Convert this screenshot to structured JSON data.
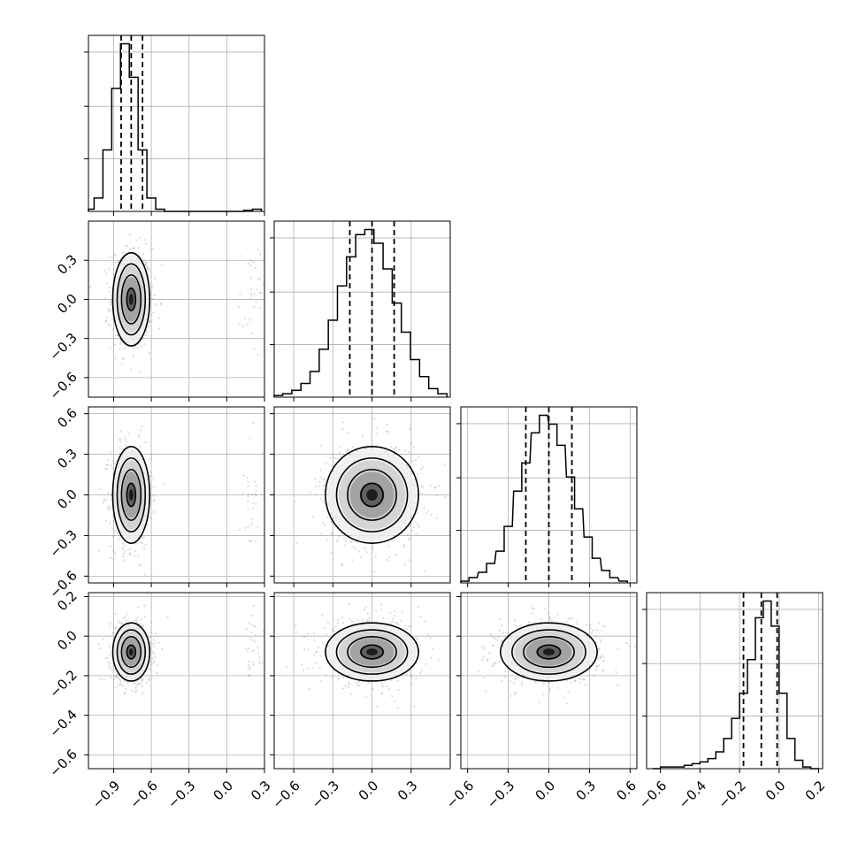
{
  "chart_data": {
    "type": "corner",
    "parameters": 4,
    "histogram_style": "step",
    "quantile_lines": "dashed",
    "grid": true,
    "colors": {
      "ink": "#000000",
      "grid": "#b0b0b0",
      "scatter": "#7f7f7f"
    },
    "diagonal": [
      {
        "param": 0,
        "range": [
          -1.1,
          0.3
        ],
        "bins": [
          -1.09,
          -1.02,
          -0.95,
          -0.88,
          -0.81,
          -0.74,
          -0.67,
          -0.6,
          -0.53,
          -0.46,
          -0.39,
          -0.32,
          -0.25,
          -0.18,
          -0.11,
          -0.04,
          0.03,
          0.1,
          0.17,
          0.24
        ],
        "counts": [
          2,
          12,
          55,
          110,
          150,
          120,
          55,
          12,
          2,
          0,
          0,
          0,
          0,
          0,
          0,
          0,
          0,
          0,
          1,
          2
        ],
        "quantiles": [
          -0.84,
          -0.76,
          -0.67
        ]
      },
      {
        "param": 1,
        "range": [
          -0.75,
          0.6
        ],
        "bins": [
          -0.72,
          -0.65,
          -0.58,
          -0.51,
          -0.44,
          -0.37,
          -0.3,
          -0.23,
          -0.16,
          -0.09,
          -0.02,
          0.05,
          0.12,
          0.19,
          0.26,
          0.33,
          0.4,
          0.47,
          0.54
        ],
        "counts": [
          1,
          2,
          4,
          8,
          15,
          28,
          45,
          65,
          82,
          95,
          98,
          90,
          75,
          55,
          38,
          22,
          12,
          5,
          2
        ],
        "quantiles": [
          -0.17,
          0.0,
          0.17
        ]
      },
      {
        "param": 2,
        "range": [
          -0.65,
          0.65
        ],
        "bins": [
          -0.62,
          -0.56,
          -0.49,
          -0.43,
          -0.36,
          -0.3,
          -0.23,
          -0.17,
          -0.1,
          -0.04,
          0.03,
          0.09,
          0.16,
          0.22,
          0.29,
          0.35,
          0.42,
          0.48,
          0.55
        ],
        "counts": [
          1,
          3,
          6,
          11,
          18,
          32,
          52,
          68,
          85,
          95,
          90,
          78,
          60,
          42,
          26,
          14,
          7,
          3,
          1
        ],
        "quantiles": [
          -0.17,
          0.0,
          0.17
        ]
      },
      {
        "param": 3,
        "range": [
          -0.67,
          0.22
        ],
        "bins": [
          -0.62,
          -0.58,
          -0.54,
          -0.5,
          -0.46,
          -0.42,
          -0.38,
          -0.34,
          -0.3,
          -0.26,
          -0.22,
          -0.18,
          -0.14,
          -0.1,
          -0.06,
          -0.02,
          0.02,
          0.06,
          0.1,
          0.14,
          0.18
        ],
        "counts": [
          0,
          1,
          1,
          1,
          2,
          3,
          4,
          6,
          10,
          18,
          30,
          45,
          65,
          90,
          100,
          85,
          45,
          18,
          5,
          1,
          0
        ],
        "quantiles": [
          -0.18,
          -0.09,
          -0.01
        ]
      }
    ],
    "scatter_panels": [
      {
        "row": 1,
        "col": 0,
        "center": [
          -0.76,
          0.0
        ],
        "spread": [
          0.07,
          0.17
        ],
        "outliers": true
      },
      {
        "row": 2,
        "col": 0,
        "center": [
          -0.76,
          0.0
        ],
        "spread": [
          0.07,
          0.17
        ],
        "outliers": true
      },
      {
        "row": 2,
        "col": 1,
        "center": [
          0.0,
          0.0
        ],
        "spread": [
          0.17,
          0.17
        ],
        "outliers": false
      },
      {
        "row": 3,
        "col": 0,
        "center": [
          -0.76,
          -0.08
        ],
        "spread": [
          0.07,
          0.07
        ],
        "outliers": true
      },
      {
        "row": 3,
        "col": 1,
        "center": [
          0.0,
          -0.08
        ],
        "spread": [
          0.17,
          0.07
        ],
        "outliers": false
      },
      {
        "row": 3,
        "col": 2,
        "center": [
          0.0,
          -0.08
        ],
        "spread": [
          0.17,
          0.07
        ],
        "outliers": false
      }
    ],
    "row_ylim": [
      null,
      [
        -0.75,
        0.6
      ],
      [
        -0.65,
        0.65
      ],
      [
        -0.67,
        0.22
      ]
    ],
    "row_yticks": [
      [],
      [
        "0.3",
        "0.0",
        "−0.3",
        "−0.6"
      ],
      [
        "0.6",
        "0.3",
        "0.0",
        "−0.3",
        "−0.6"
      ],
      [
        "0.2",
        "0.0",
        "−0.2",
        "−0.4",
        "−0.6"
      ]
    ],
    "col_xticks": [
      [
        "−0.9",
        "−0.6",
        "−0.3",
        "0.0",
        "0.3"
      ],
      [
        "−0.6",
        "−0.3",
        "0.0",
        "0.3"
      ],
      [
        "−0.6",
        "−0.3",
        "0.0",
        "0.3",
        "0.6"
      ],
      [
        "−0.6",
        "−0.4",
        "−0.2",
        "0.0",
        "0.2"
      ]
    ],
    "title": "",
    "xlabels": [
      "",
      "",
      "",
      ""
    ],
    "ylabels": [
      "",
      "",
      "",
      ""
    ]
  }
}
